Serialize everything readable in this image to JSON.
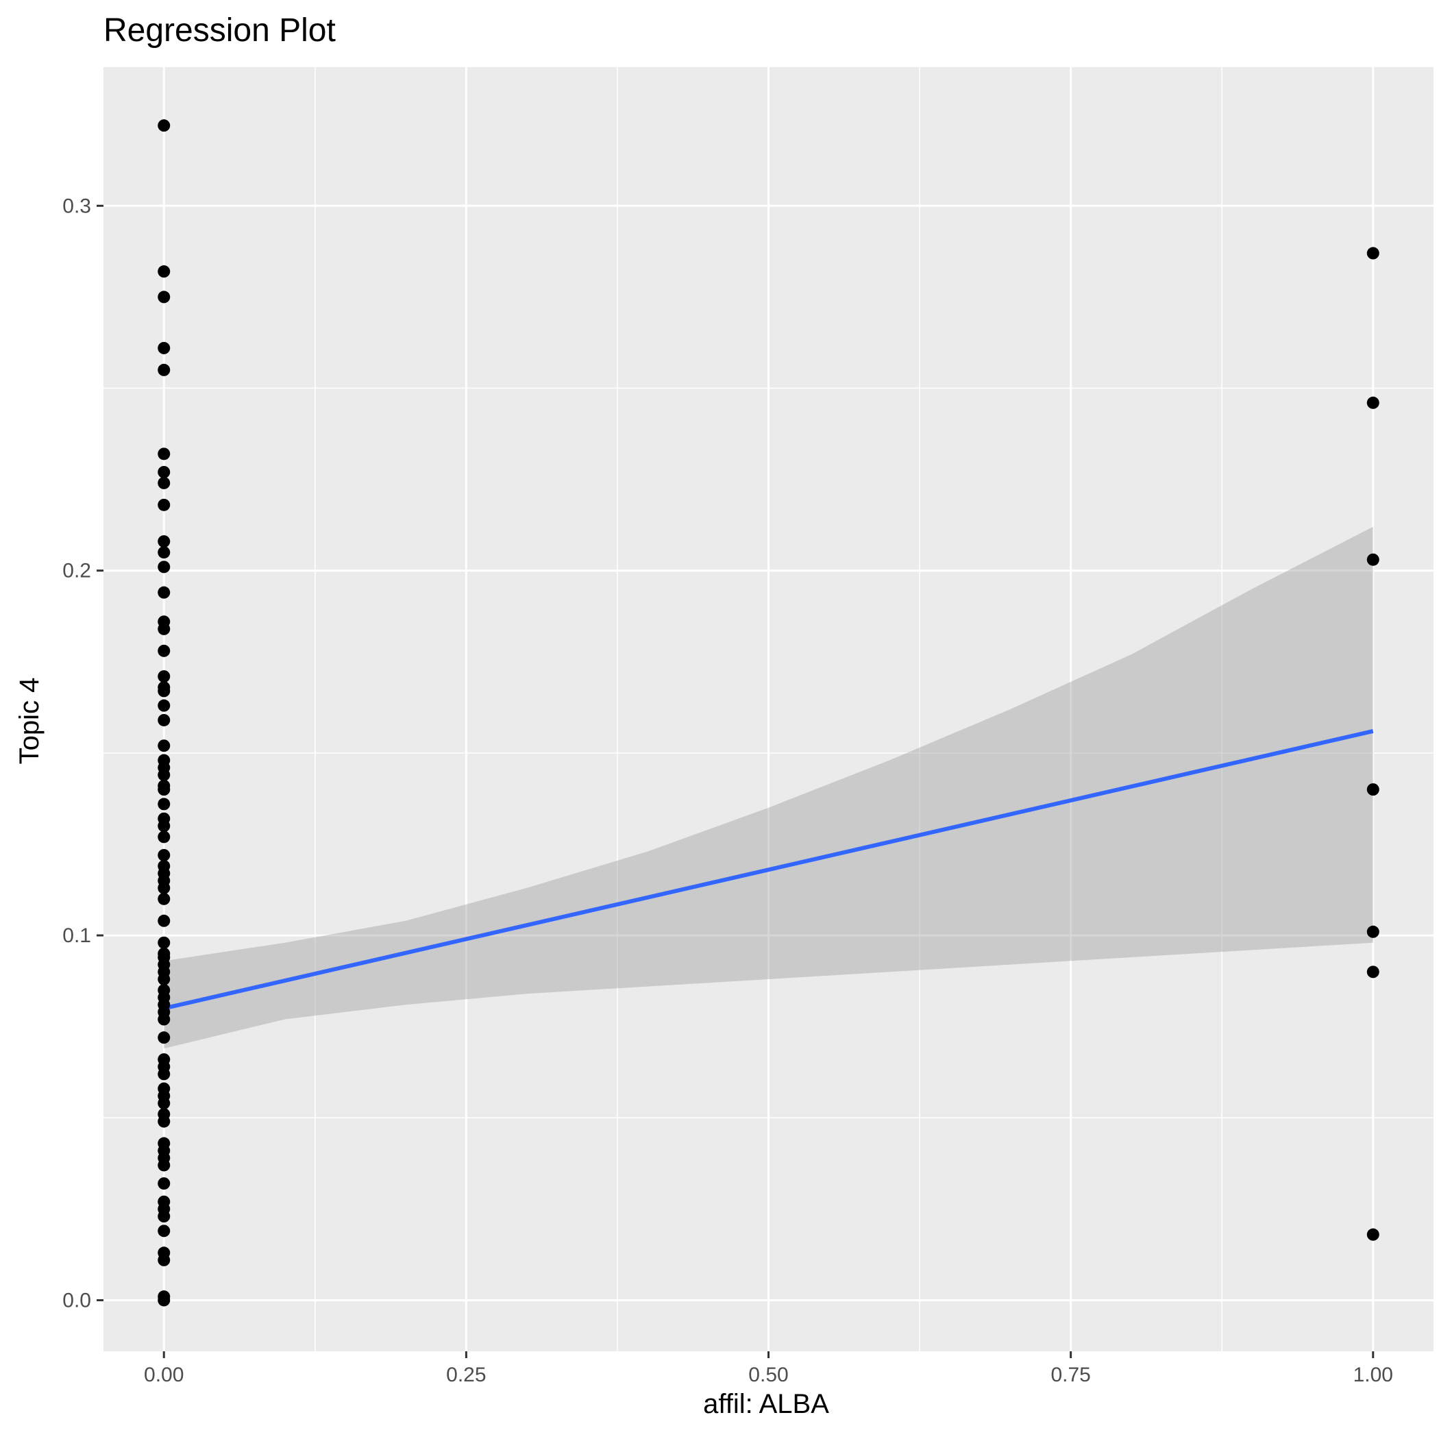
{
  "chart_data": {
    "type": "scatter",
    "title": "Regression Plot",
    "xlabel": "affil: ALBA",
    "ylabel": "Topic 4",
    "xlim": [
      -0.05,
      1.05
    ],
    "ylim": [
      -0.014,
      0.338
    ],
    "grid": true,
    "x_ticks": [
      {
        "value": 0.0,
        "label": "0.00"
      },
      {
        "value": 0.25,
        "label": "0.25"
      },
      {
        "value": 0.5,
        "label": "0.50"
      },
      {
        "value": 0.75,
        "label": "0.75"
      },
      {
        "value": 1.0,
        "label": "1.00"
      }
    ],
    "y_ticks": [
      {
        "value": 0.0,
        "label": "0.0"
      },
      {
        "value": 0.1,
        "label": "0.1"
      },
      {
        "value": 0.2,
        "label": "0.2"
      },
      {
        "value": 0.3,
        "label": "0.3"
      }
    ],
    "series": [
      {
        "type": "points",
        "color": "#000000",
        "points": [
          [
            0,
            0.322
          ],
          [
            0,
            0.282
          ],
          [
            0,
            0.275
          ],
          [
            0,
            0.261
          ],
          [
            0,
            0.255
          ],
          [
            0,
            0.232
          ],
          [
            0,
            0.227
          ],
          [
            0,
            0.224
          ],
          [
            0,
            0.218
          ],
          [
            0,
            0.208
          ],
          [
            0,
            0.205
          ],
          [
            0,
            0.201
          ],
          [
            0,
            0.194
          ],
          [
            0,
            0.186
          ],
          [
            0,
            0.184
          ],
          [
            0,
            0.178
          ],
          [
            0,
            0.171
          ],
          [
            0,
            0.168
          ],
          [
            0,
            0.167
          ],
          [
            0,
            0.163
          ],
          [
            0,
            0.159
          ],
          [
            0,
            0.152
          ],
          [
            0,
            0.148
          ],
          [
            0,
            0.146
          ],
          [
            0,
            0.144
          ],
          [
            0,
            0.141
          ],
          [
            0,
            0.14
          ],
          [
            0,
            0.136
          ],
          [
            0,
            0.132
          ],
          [
            0,
            0.13
          ],
          [
            0,
            0.127
          ],
          [
            0,
            0.122
          ],
          [
            0,
            0.119
          ],
          [
            0,
            0.117
          ],
          [
            0,
            0.115
          ],
          [
            0,
            0.113
          ],
          [
            0,
            0.11
          ],
          [
            0,
            0.104
          ],
          [
            0,
            0.098
          ],
          [
            0,
            0.095
          ],
          [
            0,
            0.094
          ],
          [
            0,
            0.092
          ],
          [
            0,
            0.09
          ],
          [
            0,
            0.088
          ],
          [
            0,
            0.085
          ],
          [
            0,
            0.083
          ],
          [
            0,
            0.081
          ],
          [
            0,
            0.079
          ],
          [
            0,
            0.077
          ],
          [
            0,
            0.072
          ],
          [
            0,
            0.066
          ],
          [
            0,
            0.064
          ],
          [
            0,
            0.062
          ],
          [
            0,
            0.058
          ],
          [
            0,
            0.056
          ],
          [
            0,
            0.054
          ],
          [
            0,
            0.051
          ],
          [
            0,
            0.049
          ],
          [
            0,
            0.043
          ],
          [
            0,
            0.041
          ],
          [
            0,
            0.039
          ],
          [
            0,
            0.037
          ],
          [
            0,
            0.032
          ],
          [
            0,
            0.027
          ],
          [
            0,
            0.025
          ],
          [
            0,
            0.023
          ],
          [
            0,
            0.019
          ],
          [
            0,
            0.013
          ],
          [
            0,
            0.011
          ],
          [
            0,
            0.001
          ],
          [
            0,
            0.0
          ],
          [
            1,
            0.287
          ],
          [
            1,
            0.246
          ],
          [
            1,
            0.203
          ],
          [
            1,
            0.14
          ],
          [
            1,
            0.101
          ],
          [
            1,
            0.09
          ],
          [
            1,
            0.018
          ]
        ]
      },
      {
        "type": "regression-line",
        "color": "#3366FF",
        "points": [
          [
            0,
            0.08
          ],
          [
            1,
            0.156
          ]
        ]
      },
      {
        "type": "confidence-band",
        "color": "#999999",
        "points": [
          [
            0.0,
            0.069,
            0.093
          ],
          [
            0.1,
            0.077,
            0.098
          ],
          [
            0.2,
            0.081,
            0.104
          ],
          [
            0.3,
            0.084,
            0.113
          ],
          [
            0.4,
            0.086,
            0.123
          ],
          [
            0.5,
            0.088,
            0.135
          ],
          [
            0.6,
            0.09,
            0.148
          ],
          [
            0.7,
            0.092,
            0.162
          ],
          [
            0.8,
            0.094,
            0.177
          ],
          [
            0.9,
            0.096,
            0.195
          ],
          [
            1.0,
            0.098,
            0.212
          ]
        ]
      }
    ]
  }
}
